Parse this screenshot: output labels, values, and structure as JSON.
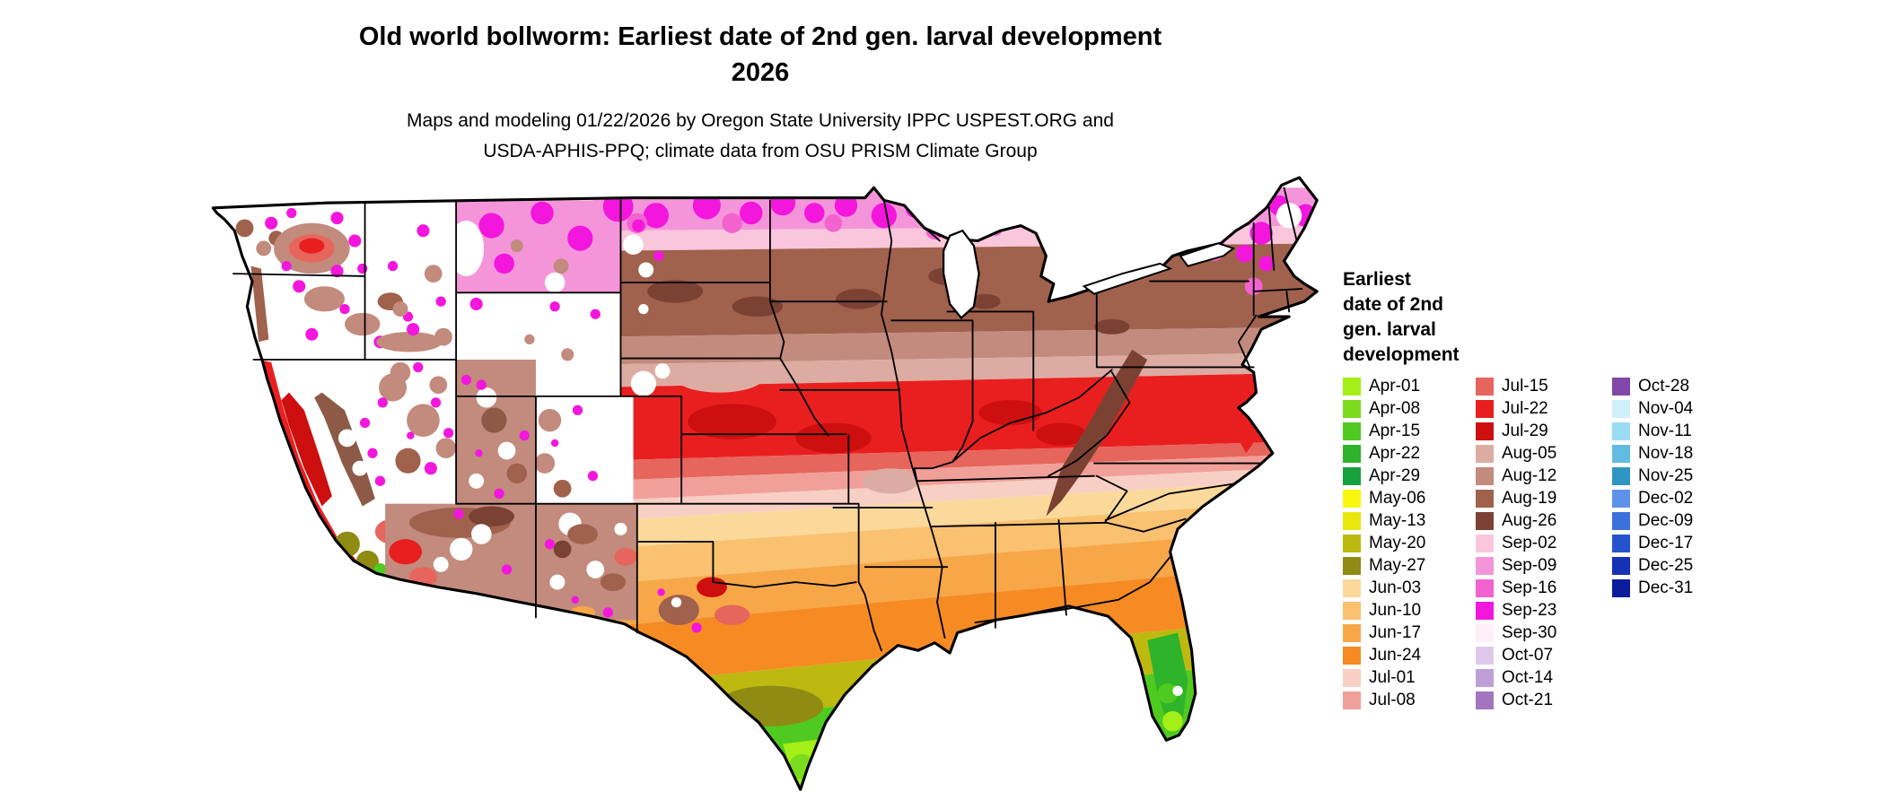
{
  "title": {
    "line1": "Old world bollworm: Earliest date of 2nd gen. larval development",
    "line2": "2026"
  },
  "subtitle": {
    "line1": "Maps and modeling 01/22/2026 by Oregon State University IPPC USPEST.ORG and",
    "line2": "USDA-APHIS-PPQ; climate data from OSU PRISM Climate Group"
  },
  "map": {
    "region": "Contiguous United States"
  },
  "legend": {
    "title_lines": [
      "Earliest",
      "date of 2nd",
      "gen. larval",
      "development"
    ],
    "columns": [
      [
        {
          "label": "Apr-01",
          "color": "#a4ef17"
        },
        {
          "label": "Apr-08",
          "color": "#7bdc1d"
        },
        {
          "label": "Apr-15",
          "color": "#4fca20"
        },
        {
          "label": "Apr-22",
          "color": "#2eb32a"
        },
        {
          "label": "Apr-29",
          "color": "#17a13c"
        },
        {
          "label": "May-06",
          "color": "#f8f70e"
        },
        {
          "label": "May-13",
          "color": "#e9e70b"
        },
        {
          "label": "May-20",
          "color": "#bdb910"
        },
        {
          "label": "May-27",
          "color": "#8f8b13"
        },
        {
          "label": "Jun-03",
          "color": "#fbd99b"
        },
        {
          "label": "Jun-10",
          "color": "#f9c170"
        },
        {
          "label": "Jun-17",
          "color": "#f7a748"
        },
        {
          "label": "Jun-24",
          "color": "#f68b23"
        },
        {
          "label": "Jul-01",
          "color": "#f7cfc4"
        },
        {
          "label": "Jul-08",
          "color": "#f1a099"
        }
      ],
      [
        {
          "label": "Jul-15",
          "color": "#e6655c"
        },
        {
          "label": "Jul-22",
          "color": "#e91f1f"
        },
        {
          "label": "Jul-29",
          "color": "#cd0f0f"
        },
        {
          "label": "Aug-05",
          "color": "#dcaca3"
        },
        {
          "label": "Aug-12",
          "color": "#c28b7d"
        },
        {
          "label": "Aug-19",
          "color": "#a0614d"
        },
        {
          "label": "Aug-26",
          "color": "#7b4233"
        },
        {
          "label": "Sep-02",
          "color": "#f9c6dc"
        },
        {
          "label": "Sep-09",
          "color": "#f595d9"
        },
        {
          "label": "Sep-16",
          "color": "#f263d0"
        },
        {
          "label": "Sep-23",
          "color": "#f316dd"
        },
        {
          "label": "Sep-30",
          "color": "#fdf0f9"
        },
        {
          "label": "Oct-07",
          "color": "#dec9eb"
        },
        {
          "label": "Oct-14",
          "color": "#c09fd6"
        },
        {
          "label": "Oct-21",
          "color": "#a176bf"
        }
      ],
      [
        {
          "label": "Oct-28",
          "color": "#8146a8"
        },
        {
          "label": "Nov-04",
          "color": "#cfeffa"
        },
        {
          "label": "Nov-11",
          "color": "#9cdcf2"
        },
        {
          "label": "Nov-18",
          "color": "#62bce2"
        },
        {
          "label": "Nov-25",
          "color": "#2f96c4"
        },
        {
          "label": "Dec-02",
          "color": "#5e92ea"
        },
        {
          "label": "Dec-09",
          "color": "#3b70dd"
        },
        {
          "label": "Dec-17",
          "color": "#2553cd"
        },
        {
          "label": "Dec-25",
          "color": "#1531b6"
        },
        {
          "label": "Dec-31",
          "color": "#0b1c9c"
        }
      ]
    ]
  }
}
